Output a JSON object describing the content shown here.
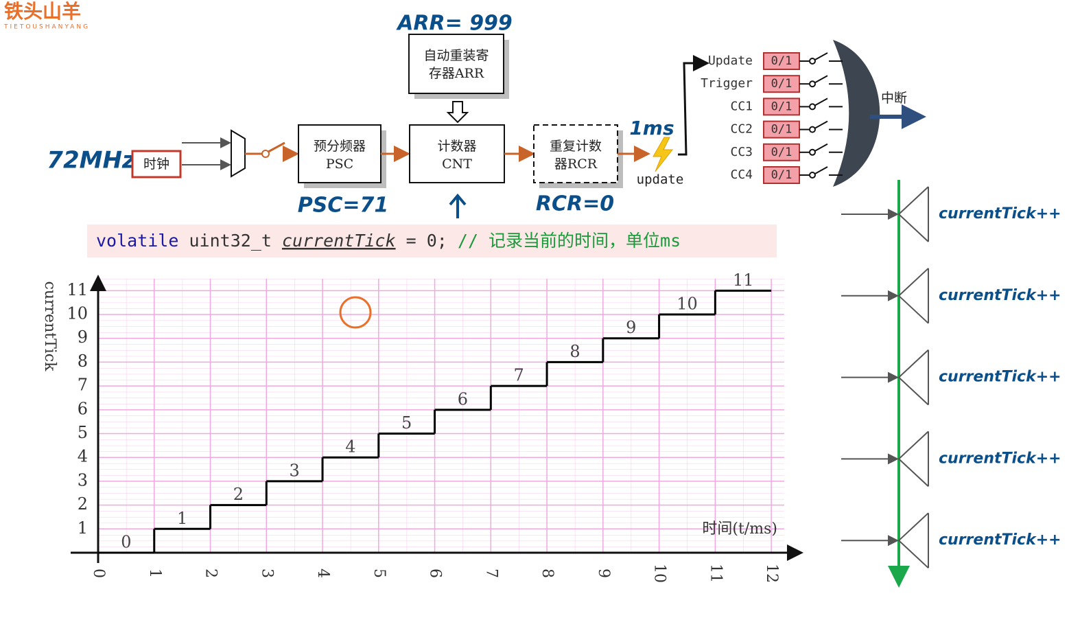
{
  "logo": {
    "name": "铁头山羊",
    "subtitle": "TIETOUSHANYANG"
  },
  "diagram": {
    "arr_value": "ARR= 999",
    "arr_box": [
      "自动重装寄",
      "存器ARR"
    ],
    "freq": "72MHz",
    "clock": "时钟",
    "psc_box": [
      "预分频器",
      "PSC"
    ],
    "psc_value": "PSC=71",
    "cnt_box": [
      "计数器",
      "CNT"
    ],
    "rcr_box": [
      "重复计数",
      "器RCR"
    ],
    "rcr_value": "RCR=0",
    "period": "1ms",
    "update": "update",
    "interrupt": "中断",
    "signals": [
      {
        "name": "Update",
        "flag": "0/1"
      },
      {
        "name": "Trigger",
        "flag": "0/1"
      },
      {
        "name": "CC1",
        "flag": "0/1"
      },
      {
        "name": "CC2",
        "flag": "0/1"
      },
      {
        "name": "CC3",
        "flag": "0/1"
      },
      {
        "name": "CC4",
        "flag": "0/1"
      }
    ]
  },
  "code": {
    "keyword": "volatile",
    "type": "uint32_t",
    "variable": "currentTick",
    "assign": "= 0;",
    "comment": "// 记录当前的时间，单位ms"
  },
  "chart_data": {
    "type": "step",
    "x_label": "时间(t/ms)",
    "y_label": "currentTick",
    "x": [
      0,
      1,
      2,
      3,
      4,
      5,
      6,
      7,
      8,
      9,
      10,
      11
    ],
    "values": [
      0,
      1,
      2,
      3,
      4,
      5,
      6,
      7,
      8,
      9,
      10,
      11
    ],
    "xlim": [
      0,
      12.5
    ],
    "ylim": [
      0,
      11.5
    ],
    "xticks": [
      0,
      1,
      2,
      3,
      4,
      5,
      6,
      7,
      8,
      9,
      10,
      11,
      12
    ],
    "yticks": [
      1,
      2,
      3,
      4,
      5,
      6,
      7,
      8,
      9,
      10,
      11
    ],
    "color": "#000000",
    "grid": true,
    "grid_color": "#f0a8e0"
  },
  "timeline": {
    "events": [
      "currentTick++",
      "currentTick++",
      "currentTick++",
      "currentTick++",
      "currentTick++"
    ]
  }
}
